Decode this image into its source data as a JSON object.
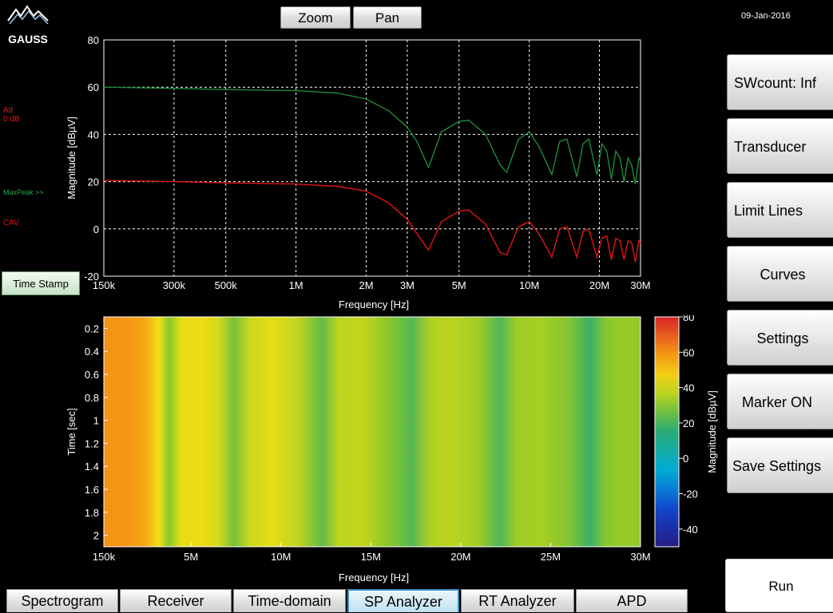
{
  "logo": {
    "text": "GAUSS"
  },
  "date": "09-Jan-2016",
  "toolbar": {
    "zoom_label": "Zoom",
    "pan_label": "Pan"
  },
  "side": {
    "att_line1": "Att",
    "att_line2": "0 dB",
    "maxpeak": "MaxPeak >>",
    "cav": "CAV",
    "time_stamp": "Time Stamp"
  },
  "right_panel": [
    {
      "label": "SWcount: Inf"
    },
    {
      "label": "Transducer"
    },
    {
      "label": "Limit Lines"
    },
    {
      "label": "Curves"
    },
    {
      "label": "Settings"
    },
    {
      "label": "Marker ON"
    },
    {
      "label": "Save Settings"
    }
  ],
  "run_label": "Run",
  "tabs": [
    {
      "label": "Spectrogram",
      "active": false
    },
    {
      "label": "Receiver",
      "active": false
    },
    {
      "label": "Time-domain",
      "active": false
    },
    {
      "label": "SP Analyzer",
      "active": true
    },
    {
      "label": "RT Analyzer",
      "active": false
    },
    {
      "label": "APD",
      "active": false
    }
  ],
  "colors": {
    "maxpeak_trace": "#1e8a3a",
    "cav_trace": "#e01515",
    "side_red": "#e01515",
    "side_green": "#2fa04a"
  },
  "chart_data": [
    {
      "type": "line",
      "title": "",
      "xlabel": "Frequency [Hz]",
      "ylabel": "Magnitude [dBµV]",
      "x_scale": "log",
      "xlim": [
        150000,
        30000000
      ],
      "ylim": [
        -20,
        80
      ],
      "grid": true,
      "x_ticks": [
        {
          "value": 150000,
          "label": "150k"
        },
        {
          "value": 300000,
          "label": "300k"
        },
        {
          "value": 500000,
          "label": "500k"
        },
        {
          "value": 1000000,
          "label": "1M"
        },
        {
          "value": 2000000,
          "label": "2M"
        },
        {
          "value": 3000000,
          "label": "3M"
        },
        {
          "value": 5000000,
          "label": "5M"
        },
        {
          "value": 10000000,
          "label": "10M"
        },
        {
          "value": 20000000,
          "label": "20M"
        },
        {
          "value": 30000000,
          "label": "30M"
        }
      ],
      "y_ticks": [
        {
          "value": -20,
          "label": "-20"
        },
        {
          "value": 0,
          "label": "0"
        },
        {
          "value": 20,
          "label": "20"
        },
        {
          "value": 40,
          "label": "40"
        },
        {
          "value": 60,
          "label": "60"
        },
        {
          "value": 80,
          "label": "80"
        }
      ],
      "series": [
        {
          "color": "#1e8a3a",
          "x": [
            150000,
            300000,
            500000,
            1000000,
            1500000,
            2000000,
            2500000,
            3000000,
            3300000,
            3700000,
            4200000,
            5000000,
            5500000,
            6500000,
            7500000,
            8000000,
            9000000,
            10000000,
            11000000,
            12500000,
            13500000,
            14500000,
            16000000,
            17000000,
            18000000,
            19500000,
            20500000,
            21500000,
            22500000,
            23500000,
            24500000,
            25500000,
            26500000,
            27500000,
            28500000,
            29500000,
            30000000
          ],
          "y": [
            60,
            59.5,
            59,
            58.5,
            57.5,
            55,
            50,
            43,
            37,
            26,
            41,
            45.5,
            46,
            40,
            27,
            24,
            38,
            41,
            35,
            23,
            37,
            38,
            22,
            36,
            38,
            23,
            36,
            33,
            21,
            33,
            30,
            20,
            30,
            27,
            19,
            30,
            29
          ]
        },
        {
          "color": "#e01515",
          "x": [
            150000,
            300000,
            500000,
            1000000,
            1500000,
            2000000,
            2500000,
            3000000,
            3300000,
            3700000,
            4200000,
            5000000,
            5500000,
            6500000,
            7500000,
            8000000,
            9000000,
            10000000,
            11000000,
            12500000,
            13500000,
            14500000,
            16000000,
            17000000,
            18000000,
            19500000,
            20500000,
            21500000,
            22500000,
            23500000,
            24500000,
            25500000,
            26500000,
            27500000,
            28500000,
            29500000,
            30000000
          ],
          "y": [
            20.5,
            20,
            19.5,
            19,
            18,
            16,
            11,
            4,
            -2,
            -9,
            3,
            7.5,
            8,
            2,
            -10,
            -11,
            1,
            3,
            -2,
            -12,
            0,
            1,
            -12,
            -1,
            0,
            -12,
            -4,
            -3,
            -13,
            -4,
            -5,
            -13,
            -5,
            -6,
            -14,
            -5,
            -6
          ]
        }
      ]
    },
    {
      "type": "heatmap",
      "title": "",
      "xlabel": "Frequency [Hz]",
      "ylabel": "Time [sec]",
      "xlim": [
        0.15,
        30
      ],
      "ylim": [
        0.1,
        2.1
      ],
      "x_ticks": [
        {
          "value": 0.15,
          "label": "150k"
        },
        {
          "value": 5,
          "label": "5M"
        },
        {
          "value": 10,
          "label": "10M"
        },
        {
          "value": 15,
          "label": "15M"
        },
        {
          "value": 20,
          "label": "20M"
        },
        {
          "value": 25,
          "label": "25M"
        },
        {
          "value": 30,
          "label": "30M"
        }
      ],
      "y_ticks": [
        "0.2",
        "0.4",
        "0.6",
        "0.8",
        "1",
        "1.2",
        "1.4",
        "1.6",
        "1.8",
        "2"
      ],
      "colorbar": {
        "label": "Magnitude [dBµV]",
        "range": [
          -50,
          80
        ],
        "ticks": [
          "80",
          "60",
          "40",
          "20",
          "0",
          "-20",
          "-40"
        ]
      },
      "freq_profile_mhz": [
        0.15,
        1.5,
        2.5,
        3.2,
        3.8,
        4.4,
        5.5,
        6.5,
        7.4,
        8.3,
        9.5,
        11.0,
        12.3,
        13.2,
        14.5,
        16.0,
        17.3,
        18.3,
        19.5,
        21.0,
        22.2,
        23.1,
        24.5,
        26.0,
        27.2,
        28.1,
        29.0,
        30.0
      ],
      "magnitude_profile_db": [
        60,
        59,
        55,
        44,
        30,
        42,
        45,
        40,
        27,
        39,
        42,
        37,
        24,
        37,
        38,
        30,
        22,
        35,
        37,
        33,
        21,
        33,
        34,
        29,
        18,
        30,
        32,
        31
      ]
    }
  ]
}
